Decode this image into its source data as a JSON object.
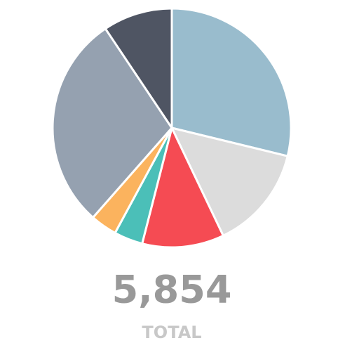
{
  "chart_data": {
    "type": "pie",
    "values": [
      28.8,
      14.1,
      11.1,
      3.9,
      3.6,
      29.1,
      9.4
    ],
    "colors": [
      "#99bccd",
      "#dcdcdc",
      "#f54b53",
      "#4bbfb8",
      "#fbb35e",
      "#95a1b0",
      "#4f5563"
    ],
    "total": "5,854",
    "total_caption": "TOTAL"
  }
}
